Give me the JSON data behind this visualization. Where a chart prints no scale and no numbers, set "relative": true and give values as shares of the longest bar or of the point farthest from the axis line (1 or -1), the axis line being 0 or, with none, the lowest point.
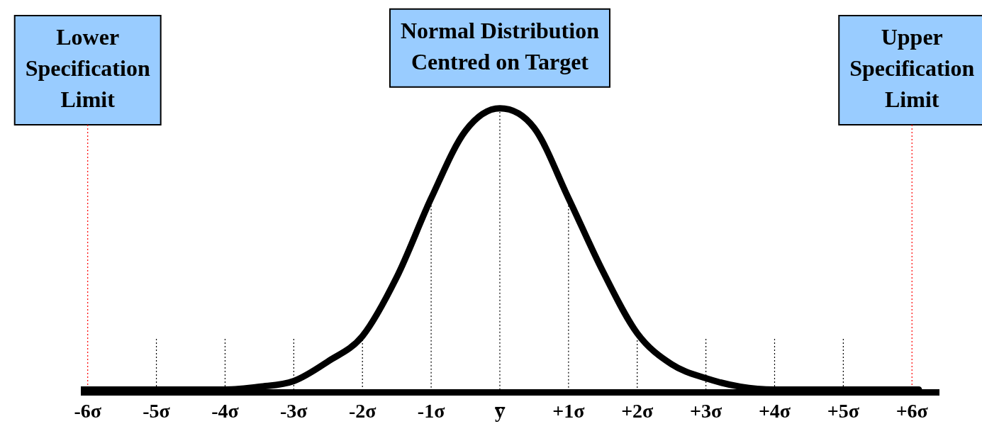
{
  "chart_data": {
    "type": "line",
    "relative": true,
    "x": [
      -6.1,
      -5,
      -4,
      -3.5,
      -3,
      -2.5,
      -2,
      -1.5,
      -1,
      -0.5,
      0,
      0.5,
      1,
      1.5,
      2,
      2.5,
      3,
      3.5,
      4,
      5,
      6.1
    ],
    "series": [
      {
        "color": "#000000",
        "values": [
          0,
          0,
          0,
          0.01,
          0.03,
          0.1,
          0.19,
          0.4,
          0.68,
          0.92,
          1,
          0.93,
          0.68,
          0.42,
          0.2,
          0.09,
          0.04,
          0.01,
          0,
          0,
          0
        ]
      }
    ],
    "xlim": [
      -6.1,
      6.4
    ],
    "xticks": [
      {
        "value": -6,
        "label": "-6σ"
      },
      {
        "value": -5,
        "label": "-5σ"
      },
      {
        "value": -4,
        "label": "-4σ"
      },
      {
        "value": -3,
        "label": "-3σ"
      },
      {
        "value": -2,
        "label": "-2σ"
      },
      {
        "value": -1,
        "label": "-1σ"
      },
      {
        "value": 0,
        "label": "y̅"
      },
      {
        "value": 1,
        "label": "+1σ"
      },
      {
        "value": 2,
        "label": "+2σ"
      },
      {
        "value": 3,
        "label": "+3σ"
      },
      {
        "value": 4,
        "label": "+4σ"
      },
      {
        "value": 5,
        "label": "+5σ"
      },
      {
        "value": 6,
        "label": "+6σ"
      }
    ],
    "marker": "none",
    "line_style": "solid",
    "legend": false,
    "tick_labels": "x",
    "ref_lines": [
      {
        "axis": "x",
        "value": -6,
        "label": "Lower Specification Limit",
        "color": "#ff0000",
        "line_style": "dotted"
      },
      {
        "axis": "x",
        "value": 6,
        "label": "Upper Specification Limit",
        "color": "#ff0000",
        "line_style": "dotted"
      },
      {
        "axis": "x",
        "value": -5,
        "color": "#000000",
        "line_style": "dotted"
      },
      {
        "axis": "x",
        "value": -4,
        "color": "#000000",
        "line_style": "dotted"
      },
      {
        "axis": "x",
        "value": -3,
        "color": "#000000",
        "line_style": "dotted"
      },
      {
        "axis": "x",
        "value": -2,
        "color": "#000000",
        "line_style": "dotted"
      },
      {
        "axis": "x",
        "value": -1,
        "color": "#000000",
        "line_style": "dotted"
      },
      {
        "axis": "x",
        "value": 0,
        "color": "#000000",
        "line_style": "dotted"
      },
      {
        "axis": "x",
        "value": 1,
        "color": "#000000",
        "line_style": "dotted"
      },
      {
        "axis": "x",
        "value": 2,
        "color": "#000000",
        "line_style": "dotted"
      },
      {
        "axis": "x",
        "value": 3,
        "color": "#000000",
        "line_style": "dotted"
      },
      {
        "axis": "x",
        "value": 4,
        "color": "#000000",
        "line_style": "dotted"
      },
      {
        "axis": "x",
        "value": 5,
        "color": "#000000",
        "line_style": "dotted"
      }
    ],
    "annotations": [
      {
        "text": "Normal Distribution Centred on Target",
        "x": 0,
        "y": 1
      }
    ]
  }
}
